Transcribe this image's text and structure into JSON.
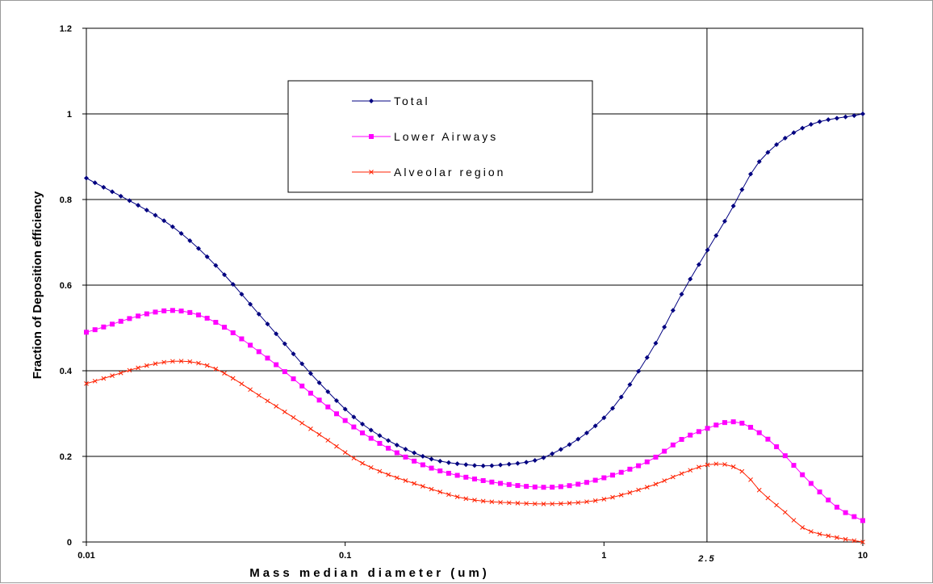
{
  "chart_data": {
    "type": "line",
    "xscale": "log",
    "xlim": [
      0.01,
      10
    ],
    "ylim": [
      0,
      1.2
    ],
    "xlabel": "Mass median diameter (um)",
    "ylabel": "Fraction of Deposition efficiency",
    "grid": "horizontal",
    "legend_position": "top-center",
    "x_ticks": [
      {
        "value": 0.01,
        "label": "0.01"
      },
      {
        "value": 0.1,
        "label": "0.1"
      },
      {
        "value": 1,
        "label": "1"
      },
      {
        "value": 10,
        "label": "10"
      }
    ],
    "y_ticks": [
      {
        "value": 0,
        "label": "0"
      },
      {
        "value": 0.2,
        "label": "0.2"
      },
      {
        "value": 0.4,
        "label": "0.4"
      },
      {
        "value": 0.6,
        "label": "0.6"
      },
      {
        "value": 0.8,
        "label": "0.8"
      },
      {
        "value": 1,
        "label": "1"
      },
      {
        "value": 1.2,
        "label": "1.2"
      }
    ],
    "reference_line": {
      "x": 2.5,
      "label": "2.5"
    },
    "series": [
      {
        "name": "Total",
        "color": "#000080",
        "marker": "diamond",
        "x": [
          0.01,
          0.02,
          0.03,
          0.05,
          0.08,
          0.12,
          0.2,
          0.3,
          0.4,
          0.6,
          1.0,
          1.5,
          2.0,
          2.5,
          3.0,
          4.0,
          6.0,
          10.0
        ],
        "y": [
          0.85,
          0.75,
          0.66,
          0.51,
          0.37,
          0.27,
          0.2,
          0.18,
          0.18,
          0.2,
          0.29,
          0.44,
          0.58,
          0.68,
          0.76,
          0.89,
          0.97,
          1.0
        ]
      },
      {
        "name": "Lower Airways",
        "color": "#ff00ff",
        "marker": "square",
        "x": [
          0.01,
          0.02,
          0.03,
          0.05,
          0.08,
          0.12,
          0.2,
          0.3,
          0.5,
          0.7,
          1.0,
          1.5,
          2.0,
          2.5,
          3.0,
          3.5,
          4.5,
          6.0,
          8.0,
          10.0
        ],
        "y": [
          0.49,
          0.54,
          0.52,
          0.43,
          0.33,
          0.25,
          0.18,
          0.15,
          0.13,
          0.13,
          0.15,
          0.19,
          0.24,
          0.265,
          0.28,
          0.275,
          0.23,
          0.15,
          0.08,
          0.05
        ]
      },
      {
        "name": "Alveolar region",
        "color": "#ff2000",
        "marker": "x",
        "x": [
          0.01,
          0.02,
          0.03,
          0.05,
          0.08,
          0.12,
          0.2,
          0.3,
          0.5,
          0.7,
          1.0,
          1.5,
          2.0,
          2.5,
          3.0,
          3.5,
          4.0,
          5.0,
          6.0,
          8.0,
          10.0
        ],
        "y": [
          0.37,
          0.42,
          0.41,
          0.33,
          0.25,
          0.18,
          0.13,
          0.1,
          0.09,
          0.09,
          0.1,
          0.13,
          0.16,
          0.18,
          0.18,
          0.16,
          0.12,
          0.07,
          0.03,
          0.01,
          0.0
        ]
      }
    ]
  }
}
